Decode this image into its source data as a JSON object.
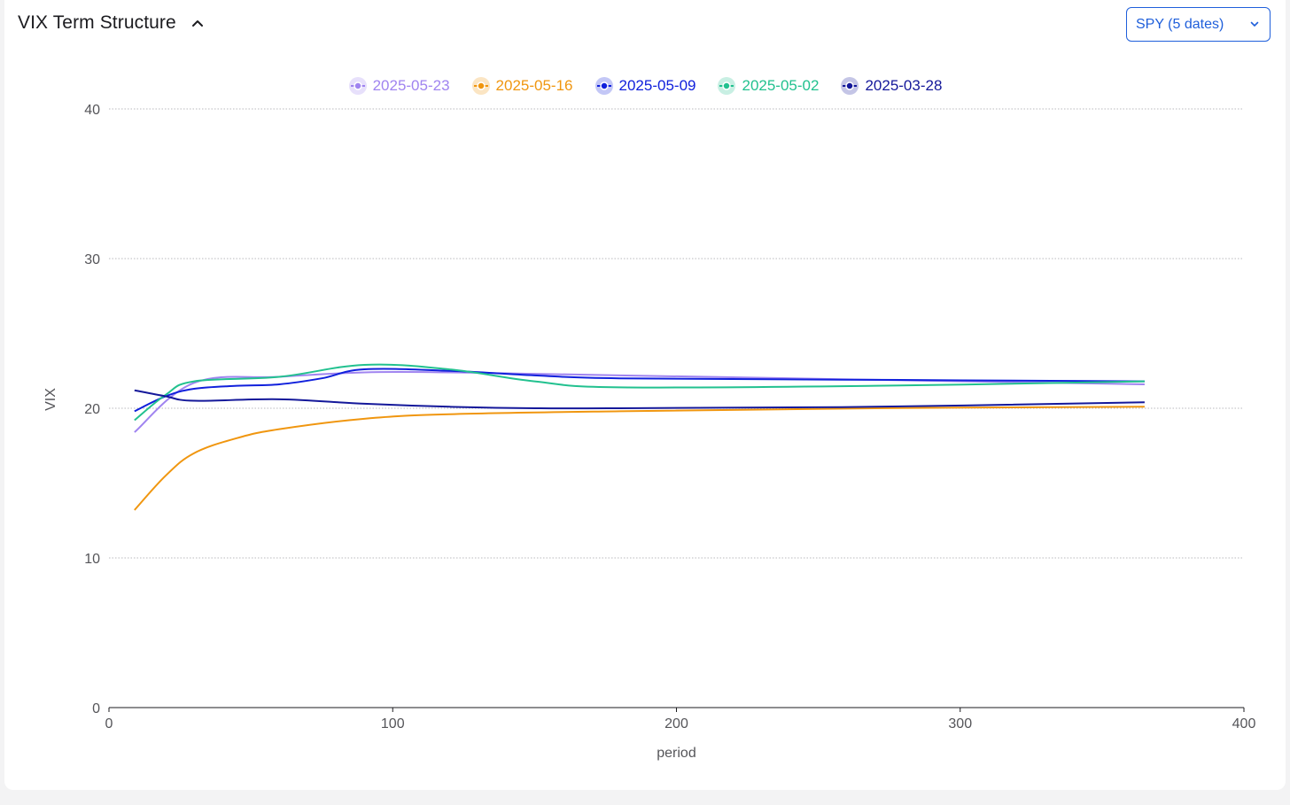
{
  "header": {
    "title": "VIX Term Structure",
    "collapse_icon": "chevron-up-icon"
  },
  "selector": {
    "value": "SPY (5 dates)",
    "icon": "chevron-down-icon"
  },
  "chart_data": {
    "type": "line",
    "xlabel": "period",
    "ylabel": "VIX",
    "xlim": [
      0,
      400
    ],
    "ylim": [
      0,
      40
    ],
    "xticks": [
      "0",
      "100",
      "200",
      "300",
      "400"
    ],
    "yticks": [
      "0",
      "10",
      "20",
      "30",
      "40"
    ],
    "grid": "horizontal-dotted",
    "legend_position": "top-center",
    "series": [
      {
        "name": "2025-05-23",
        "color": "#a084f0",
        "x": [
          9,
          30,
          60,
          90,
          120,
          150,
          180,
          270,
          365
        ],
        "y": [
          18.4,
          21.7,
          22.1,
          22.4,
          22.4,
          22.3,
          22.2,
          21.9,
          21.6
        ]
      },
      {
        "name": "2025-05-16",
        "color": "#f0960f",
        "x": [
          9,
          20,
          30,
          45,
          60,
          90,
          120,
          180,
          270,
          365
        ],
        "y": [
          13.2,
          15.5,
          17.0,
          18.0,
          18.6,
          19.3,
          19.6,
          19.8,
          20.0,
          20.1
        ]
      },
      {
        "name": "2025-05-09",
        "color": "#1020dc",
        "x": [
          9,
          20,
          30,
          45,
          60,
          75,
          90,
          120,
          150,
          180,
          270,
          365
        ],
        "y": [
          19.8,
          20.8,
          21.3,
          21.5,
          21.6,
          22.0,
          22.6,
          22.5,
          22.2,
          22.0,
          21.9,
          21.8
        ]
      },
      {
        "name": "2025-05-02",
        "color": "#22c18f",
        "x": [
          9,
          20,
          30,
          60,
          90,
          120,
          150,
          180,
          270,
          365
        ],
        "y": [
          19.2,
          20.9,
          21.8,
          22.1,
          22.9,
          22.6,
          21.8,
          21.4,
          21.5,
          21.8
        ]
      },
      {
        "name": "2025-03-28",
        "color": "#14189a",
        "x": [
          9,
          20,
          30,
          60,
          90,
          120,
          150,
          180,
          270,
          365
        ],
        "y": [
          21.2,
          20.8,
          20.5,
          20.6,
          20.3,
          20.1,
          20.0,
          20.0,
          20.1,
          20.4
        ]
      }
    ]
  }
}
